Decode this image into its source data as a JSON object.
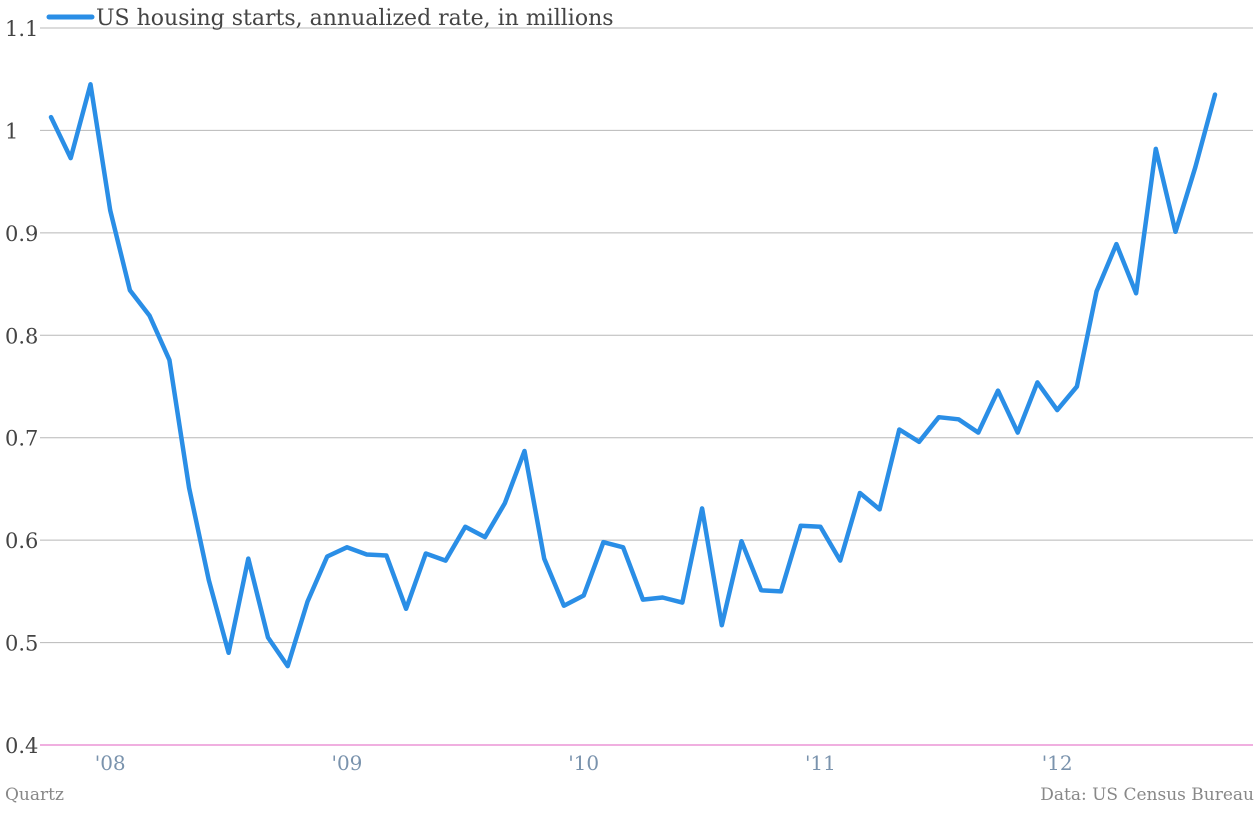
{
  "chart_data": {
    "type": "line",
    "series": [
      {
        "name": "US housing starts, annualized rate, in millions",
        "color": "#2a8ee6",
        "x": [
          "2007-10",
          "2007-11",
          "2007-12",
          "2008-01",
          "2008-02",
          "2008-03",
          "2008-04",
          "2008-05",
          "2008-06",
          "2008-07",
          "2008-08",
          "2008-09",
          "2008-10",
          "2008-11",
          "2008-12",
          "2009-01",
          "2009-02",
          "2009-03",
          "2009-04",
          "2009-05",
          "2009-06",
          "2009-07",
          "2009-08",
          "2009-09",
          "2009-10",
          "2009-11",
          "2009-12",
          "2010-01",
          "2010-02",
          "2010-03",
          "2010-04",
          "2010-05",
          "2010-06",
          "2010-07",
          "2010-08",
          "2010-09",
          "2010-10",
          "2010-11",
          "2010-12",
          "2011-01",
          "2011-02",
          "2011-03",
          "2011-04",
          "2011-05",
          "2011-06",
          "2011-07",
          "2011-08",
          "2011-09",
          "2011-10",
          "2011-11",
          "2011-12",
          "2012-01",
          "2012-02",
          "2012-03",
          "2012-04",
          "2012-05",
          "2012-06",
          "2012-07",
          "2012-08",
          "2012-09"
        ],
        "values": [
          1.013,
          0.973,
          1.045,
          0.922,
          0.844,
          0.819,
          0.776,
          0.651,
          0.561,
          0.49,
          0.582,
          0.505,
          0.477,
          0.54,
          0.584,
          0.593,
          0.586,
          0.585,
          0.533,
          0.587,
          0.58,
          0.613,
          0.603,
          0.636,
          0.687,
          0.582,
          0.536,
          0.546,
          0.598,
          0.593,
          0.542,
          0.544,
          0.539,
          0.631,
          0.517,
          0.599,
          0.551,
          0.55,
          0.614,
          0.613,
          0.58,
          0.646,
          0.63,
          0.708,
          0.696,
          0.72,
          0.718,
          0.705,
          0.746,
          0.705,
          0.754,
          0.727,
          0.75,
          0.843,
          0.889,
          0.841,
          0.982,
          0.901,
          0.964,
          1.035
        ]
      }
    ],
    "x_ticks": [
      "'08",
      "'09",
      "'10",
      "'11",
      "'12"
    ],
    "y_ticks": [
      "1.1",
      "1",
      "0.9",
      "0.8",
      "0.7",
      "0.6",
      "0.5",
      "0.4"
    ],
    "ylim": [
      0.4,
      1.1
    ],
    "grid": true,
    "legend": "top-left",
    "title": "",
    "xlabel": "",
    "ylabel": ""
  },
  "footer": {
    "source_left": "Quartz",
    "source_right": "Data: US Census Bureau"
  }
}
